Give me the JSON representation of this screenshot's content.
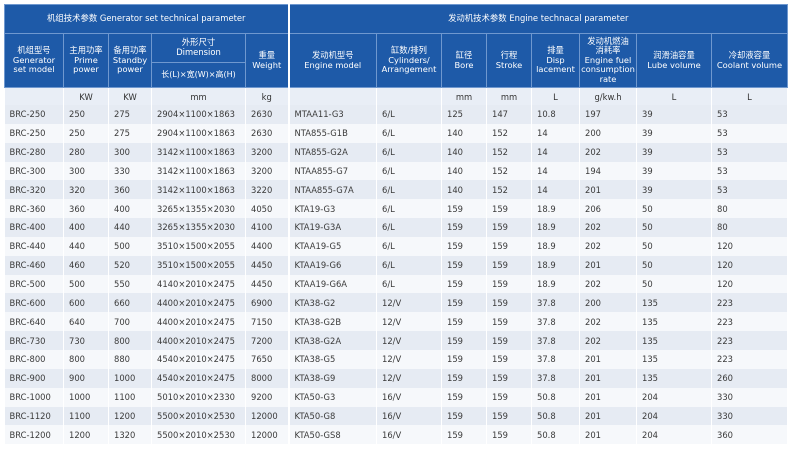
{
  "groups": {
    "generator": "机组技术参数 Generator set technical parameter",
    "engine": "发动机技术参数 Engine technacal parameter"
  },
  "headers": {
    "model": [
      "机组型号",
      "Generator",
      "set model"
    ],
    "prime": [
      "主用功率",
      "Prime",
      "power"
    ],
    "standby": [
      "备用功率",
      "Standby",
      "power"
    ],
    "dimension": [
      "外形尺寸",
      "Dimension"
    ],
    "dimension_sub": "长(L)×宽(W)×高(H)",
    "weight": [
      "重量",
      "Weight"
    ],
    "engine_model": [
      "发动机型号",
      "Engine model"
    ],
    "cylinders": [
      "缸数/排列",
      "Cylinders/",
      "Arrangement"
    ],
    "bore": [
      "缸径",
      "Bore"
    ],
    "stroke": [
      "行程",
      "Stroke"
    ],
    "displacement": [
      "排量",
      "Disp",
      "lacement"
    ],
    "fuel": [
      "发动机燃油",
      "消耗率",
      "Engine fuel",
      "consumption",
      "rate"
    ],
    "lube": [
      "润滑油容量",
      "Lube volume"
    ],
    "coolant": [
      "冷却液容量",
      "Coolant volume"
    ]
  },
  "units": [
    "",
    "KW",
    "KW",
    "mm",
    "kg",
    "",
    "",
    "mm",
    "mm",
    "L",
    "g/kw.h",
    "L",
    "L"
  ],
  "rows": [
    [
      "BRC-250",
      "250",
      "275",
      "2904×1100×1863",
      "2630",
      "MTAA11-G3",
      "6/L",
      "125",
      "147",
      "10.8",
      "197",
      "39",
      "53"
    ],
    [
      "BRC-250",
      "250",
      "275",
      "2904×1100×1863",
      "2630",
      "NTA855-G1B",
      "6/L",
      "140",
      "152",
      "14",
      "200",
      "39",
      "53"
    ],
    [
      "BRC-280",
      "280",
      "300",
      "3142×1100×1863",
      "3200",
      "NTA855-G2A",
      "6/L",
      "140",
      "152",
      "14",
      "202",
      "39",
      "53"
    ],
    [
      "BRC-300",
      "300",
      "330",
      "3142×1100×1863",
      "3200",
      "NTAA855-G7",
      "6/L",
      "140",
      "152",
      "14",
      "194",
      "39",
      "53"
    ],
    [
      "BRC-320",
      "320",
      "360",
      "3142×1100×1863",
      "3220",
      "NTAA855-G7A",
      "6/L",
      "140",
      "152",
      "14",
      "201",
      "39",
      "53"
    ],
    [
      "BRC-360",
      "360",
      "400",
      "3265×1355×2030",
      "4050",
      "KTA19-G3",
      "6/L",
      "159",
      "159",
      "18.9",
      "206",
      "50",
      "80"
    ],
    [
      "BRC-400",
      "400",
      "440",
      "3265×1355×2030",
      "4100",
      "KTA19-G3A",
      "6/L",
      "159",
      "159",
      "18.9",
      "202",
      "50",
      "80"
    ],
    [
      "BRC-440",
      "440",
      "500",
      "3510×1500×2055",
      "4400",
      "KTAA19-G5",
      "6/L",
      "159",
      "159",
      "18.9",
      "202",
      "50",
      "120"
    ],
    [
      "BRC-460",
      "460",
      "520",
      "3510×1500×2055",
      "4450",
      "KTAA19-G6",
      "6/L",
      "159",
      "159",
      "18.9",
      "201",
      "50",
      "120"
    ],
    [
      "BRC-500",
      "500",
      "550",
      "4140×2010×2475",
      "4450",
      "KTAA19-G6A",
      "6/L",
      "159",
      "159",
      "18.9",
      "202",
      "50",
      "120"
    ],
    [
      "BRC-600",
      "600",
      "660",
      "4400×2010×2475",
      "6900",
      "KTA38-G2",
      "12/V",
      "159",
      "159",
      "37.8",
      "200",
      "135",
      "223"
    ],
    [
      "BRC-640",
      "640",
      "700",
      "4400×2010×2475",
      "7150",
      "KTA38-G2B",
      "12/V",
      "159",
      "159",
      "37.8",
      "202",
      "135",
      "223"
    ],
    [
      "BRC-730",
      "730",
      "800",
      "4400×2010×2475",
      "7200",
      "KTA38-G2A",
      "12/V",
      "159",
      "159",
      "37.8",
      "202",
      "135",
      "223"
    ],
    [
      "BRC-800",
      "800",
      "880",
      "4540×2010×2475",
      "7650",
      "KTA38-G5",
      "12/V",
      "159",
      "159",
      "37.8",
      "201",
      "135",
      "223"
    ],
    [
      "BRC-900",
      "900",
      "1000",
      "4540×2010×2475",
      "8000",
      "KTA38-G9",
      "12/V",
      "159",
      "159",
      "37.8",
      "201",
      "135",
      "260"
    ],
    [
      "BRC-1000",
      "1000",
      "1100",
      "5010×2010×2330",
      "9200",
      "KTA50-G3",
      "16/V",
      "159",
      "159",
      "50.8",
      "201",
      "204",
      "330"
    ],
    [
      "BRC-1120",
      "1100",
      "1200",
      "5500×2010×2530",
      "12000",
      "KTA50-G8",
      "16/V",
      "159",
      "159",
      "50.8",
      "201",
      "204",
      "330"
    ],
    [
      "BRC-1200",
      "1200",
      "1320",
      "5500×2010×2530",
      "12000",
      "KTA50-GS8",
      "16/V",
      "159",
      "159",
      "50.8",
      "201",
      "204",
      "360"
    ]
  ],
  "colors": {
    "header_bg": "#1e5aa8",
    "row_odd": "#e6ebf3",
    "row_even": "#f6f8fb"
  }
}
